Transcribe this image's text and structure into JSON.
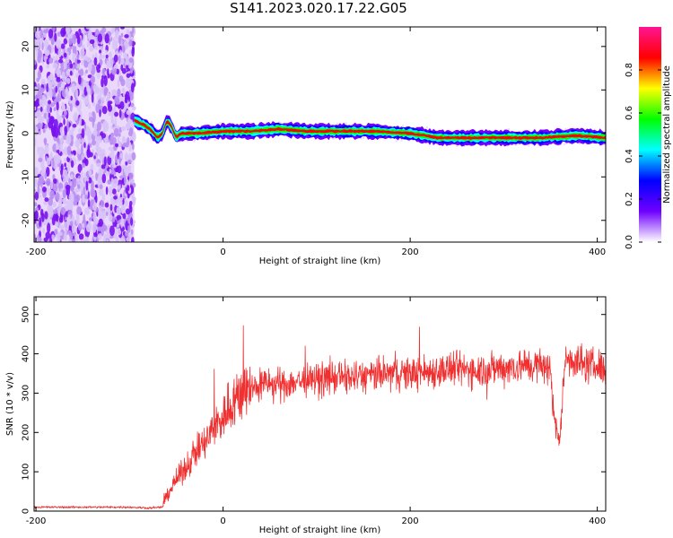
{
  "title": "S141.2023.020.17.22.G05",
  "chart_data": [
    {
      "type": "heatmap",
      "xlabel": "Height of straight line (km)",
      "ylabel": "Frequency (Hz)",
      "xlim": [
        -202,
        409
      ],
      "ylim": [
        -25,
        24.5
      ],
      "xticks": [
        -200,
        0,
        200,
        400
      ],
      "yticks": [
        -20,
        -10,
        0,
        10,
        20
      ],
      "colorbar": {
        "label": "Normalized spectral amplitude",
        "range": [
          0,
          1
        ],
        "ticks": [
          0.0,
          0.2,
          0.4,
          0.6,
          0.8
        ],
        "tick_labels": [
          "0.0",
          "0.2",
          "0.4",
          "0.6",
          "0.8"
        ],
        "colors": [
          "#ffffff",
          "#7000ff",
          "#0000ff",
          "#00ffff",
          "#00ff00",
          "#ffff00",
          "#ff0000",
          "#ff1493"
        ]
      },
      "noise_region_x": [
        -202,
        -95
      ],
      "ridge": {
        "x": [
          -95,
          -85,
          -78,
          -70,
          -65,
          -60,
          -55,
          -50,
          -45,
          -30,
          0,
          30,
          60,
          90,
          120,
          160,
          200,
          230,
          260,
          300,
          340,
          380,
          409
        ],
        "frequency_hz": [
          3,
          2,
          1,
          -1,
          0,
          3,
          1.5,
          -1,
          0,
          0,
          0.5,
          0.5,
          1,
          0.5,
          0.5,
          0.5,
          0,
          -1,
          -1,
          -1,
          -1,
          -0.5,
          -1
        ]
      }
    },
    {
      "type": "line",
      "xlabel": "Height of straight line (km)",
      "ylabel": "SNR (10 * v/v)",
      "xlim": [
        -202,
        409
      ],
      "ylim": [
        0,
        545
      ],
      "xticks": [
        -200,
        0,
        200,
        400
      ],
      "yticks": [
        0,
        100,
        200,
        300,
        400,
        500
      ],
      "color": "#f03030",
      "series": [
        {
          "x": [
            -202,
            -180,
            -160,
            -140,
            -120,
            -100,
            -80,
            -65,
            -60,
            -50,
            -40,
            -30,
            -20,
            -10,
            0,
            10,
            20,
            30,
            40,
            50,
            60,
            80,
            100,
            120,
            140,
            160,
            180,
            200,
            220,
            240,
            260,
            280,
            300,
            320,
            340,
            350,
            355,
            360,
            365,
            370,
            380,
            390,
            400,
            409
          ],
          "values": [
            10,
            10,
            10,
            10,
            10,
            10,
            8,
            10,
            40,
            80,
            110,
            150,
            170,
            210,
            240,
            280,
            300,
            315,
            320,
            325,
            320,
            330,
            335,
            340,
            340,
            345,
            350,
            350,
            355,
            360,
            360,
            360,
            365,
            370,
            370,
            360,
            220,
            170,
            380,
            390,
            380,
            370,
            370,
            360
          ]
        }
      ]
    }
  ]
}
